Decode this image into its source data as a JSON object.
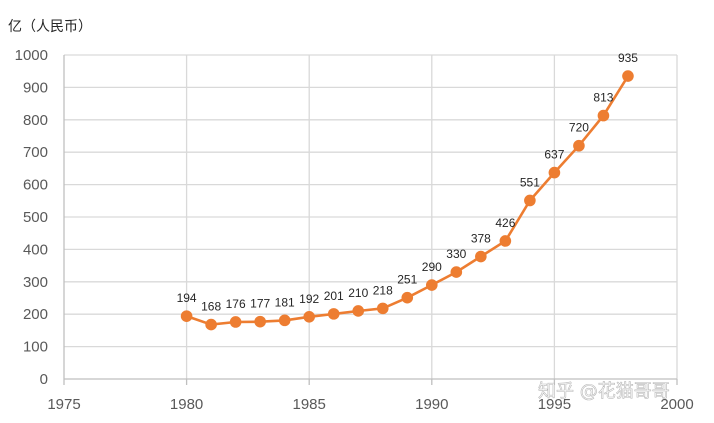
{
  "chart_data": {
    "type": "line",
    "title": "",
    "ylabel": "亿（人民币）",
    "xlabel": "",
    "xlim": [
      1975,
      2000
    ],
    "ylim": [
      0,
      1000
    ],
    "x_ticks": [
      1975,
      1980,
      1985,
      1990,
      1995,
      2000
    ],
    "y_ticks": [
      0,
      100,
      200,
      300,
      400,
      500,
      600,
      700,
      800,
      900,
      1000
    ],
    "grid": true,
    "legend": "none",
    "color": "#ED7D31",
    "series": [
      {
        "x": [
          1980,
          1981,
          1982,
          1983,
          1984,
          1985,
          1986,
          1987,
          1988,
          1989,
          1990,
          1991,
          1992,
          1993,
          1994,
          1995,
          1996,
          1997,
          1998
        ],
        "values": [
          194,
          168,
          176,
          177,
          181,
          192,
          201,
          210,
          218,
          251,
          290,
          330,
          378,
          426,
          551,
          637,
          720,
          813,
          935
        ]
      }
    ]
  },
  "watermark": "知乎 @花猫哥哥"
}
